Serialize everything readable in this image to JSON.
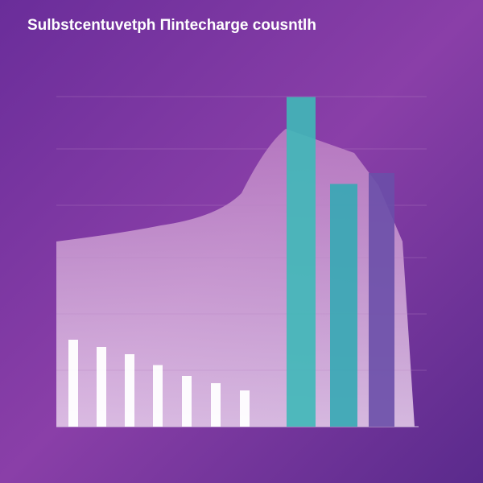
{
  "chart_data": {
    "type": "bar",
    "title": "Sulbstcentuvetph Πintecharge cousntlh",
    "categories": [
      null,
      null,
      null,
      null,
      null,
      null,
      null,
      null,
      null,
      null
    ],
    "values": [
      24,
      22,
      20,
      17,
      14,
      12,
      10,
      91,
      67,
      70
    ],
    "colors": [
      "#ffffff",
      "#ffffff",
      "#ffffff",
      "#ffffff",
      "#ffffff",
      "#ffffff",
      "#ffffff",
      "#3fb8b8",
      "#35a8b4",
      "#6a4fa8"
    ],
    "ylim": [
      0,
      100
    ]
  }
}
